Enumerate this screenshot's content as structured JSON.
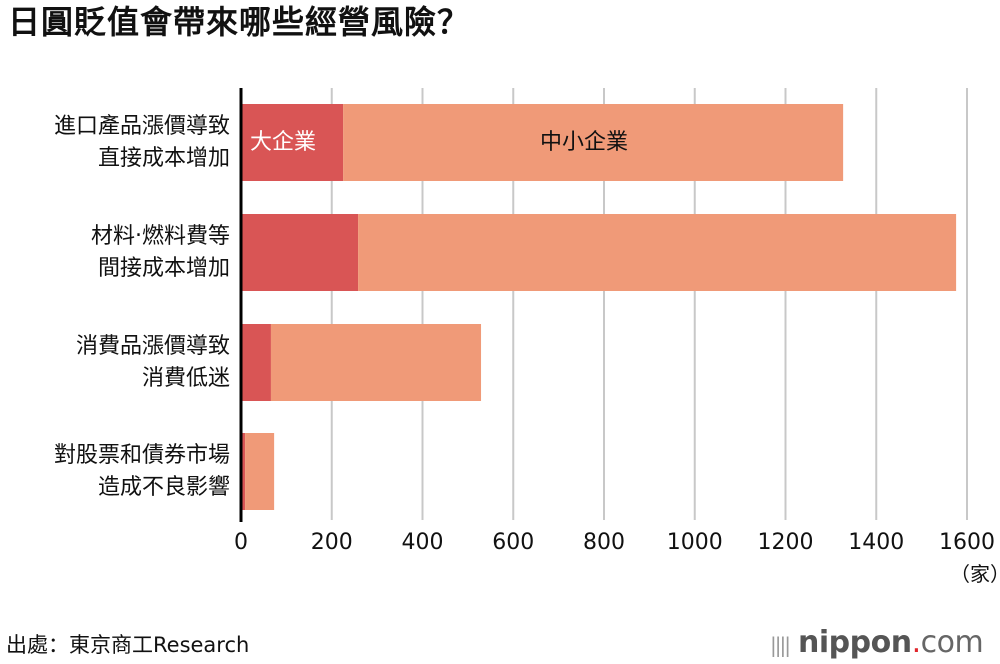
{
  "title": "日圓貶值會帶來哪些經營風險？",
  "chart_data": {
    "type": "bar",
    "orientation": "horizontal",
    "stacked": true,
    "title": "日圓貶值會帶來哪些經營風險？",
    "categories": [
      [
        "進口產品漲價導致",
        "直接成本增加"
      ],
      [
        "材料‧燃料費等",
        "間接成本增加"
      ],
      [
        "消費品漲價導致",
        "消費低迷"
      ],
      [
        "對股票和債券市場",
        "造成不良影響"
      ]
    ],
    "series": [
      {
        "name": "大企業",
        "color": "#d95555",
        "values": [
          225,
          258,
          66,
          9
        ]
      },
      {
        "name": "中小企業",
        "color": "#f09a78",
        "values": [
          1102,
          1318,
          463,
          64
        ]
      }
    ],
    "xlim": [
      0,
      1600
    ],
    "xticks": [
      "0",
      "200",
      "400",
      "600",
      "800",
      "1000",
      "1200",
      "1400",
      "1600"
    ],
    "xunit": "（家）",
    "grid": true
  },
  "source": "出處：東京商工Research",
  "logo": {
    "brand": "nippon",
    "dot": ".",
    "suffix": "com"
  }
}
